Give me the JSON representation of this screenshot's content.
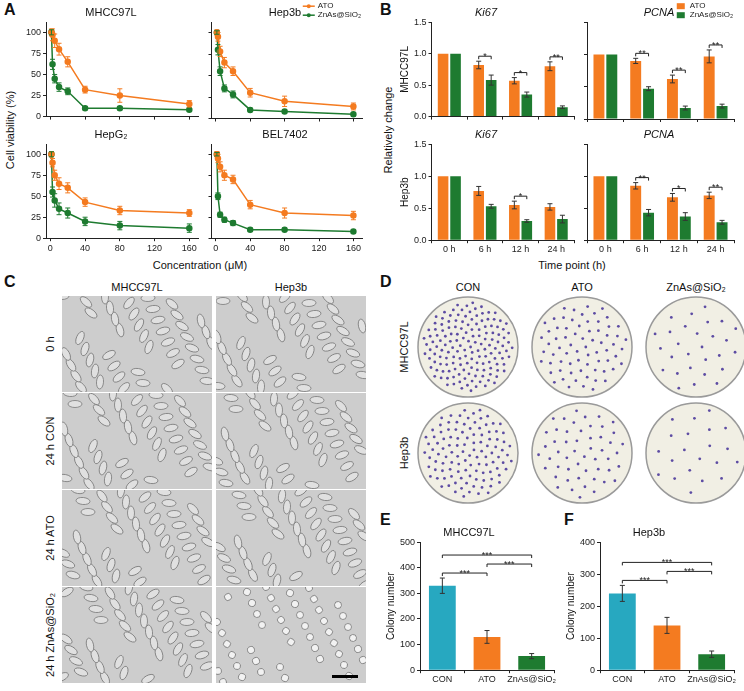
{
  "chart_data": [
    {
      "type": "line",
      "title": "MHCC97L",
      "x": [
        1.25,
        2.5,
        5,
        10,
        20,
        40,
        80,
        160
      ],
      "xlim": [
        -5,
        170
      ],
      "xticks": [
        0,
        40,
        80,
        120,
        160
      ],
      "ylim": [
        0,
        112
      ],
      "yticks": [
        0,
        25,
        50,
        75,
        100
      ],
      "grid": false,
      "marker": "circle",
      "line_style": "solid",
      "tick_labels": "y",
      "series": [
        {
          "name": "ATO",
          "color": "#f47b20",
          "values": [
            100,
            97,
            90,
            80,
            65,
            32,
            25,
            15
          ],
          "errors": [
            4,
            7,
            8,
            7,
            6,
            4,
            8,
            4
          ]
        },
        {
          "name": "ZnAs@SiO₂",
          "color": "#1e7b30",
          "values": [
            100,
            62,
            45,
            35,
            30,
            10,
            10,
            8
          ],
          "errors": [
            3,
            6,
            5,
            5,
            4,
            2,
            2,
            2
          ]
        }
      ]
    },
    {
      "type": "line",
      "title": "Hep3b",
      "x": [
        1.25,
        2.5,
        5,
        10,
        20,
        40,
        80,
        160
      ],
      "xlim": [
        -5,
        170
      ],
      "xticks": [
        0,
        40,
        80,
        120,
        160
      ],
      "ylim": [
        0,
        112
      ],
      "yticks": [
        0,
        25,
        50,
        75,
        100
      ],
      "grid": false,
      "marker": "circle",
      "line_style": "solid",
      "tick_labels": false,
      "legend": "upper right",
      "series": [
        {
          "name": "ATO",
          "color": "#f47b20",
          "values": [
            100,
            95,
            78,
            65,
            55,
            30,
            20,
            14
          ],
          "errors": [
            3,
            5,
            6,
            6,
            5,
            5,
            6,
            4
          ]
        },
        {
          "name": "ZnAs@SiO₂",
          "color": "#1e7b30",
          "values": [
            100,
            80,
            55,
            35,
            28,
            10,
            8,
            5
          ],
          "errors": [
            2,
            6,
            5,
            4,
            4,
            2,
            2,
            2
          ]
        }
      ]
    },
    {
      "type": "line",
      "title": "HepG₂",
      "x": [
        1.25,
        2.5,
        5,
        10,
        20,
        40,
        80,
        160
      ],
      "xlim": [
        -5,
        170
      ],
      "xticks": [
        0,
        40,
        80,
        120,
        160
      ],
      "ylim": [
        0,
        112
      ],
      "yticks": [
        0,
        25,
        50,
        75,
        100
      ],
      "grid": false,
      "marker": "circle",
      "line_style": "solid",
      "series": [
        {
          "name": "ATO",
          "color": "#f47b20",
          "values": [
            100,
            90,
            75,
            65,
            60,
            43,
            33,
            30
          ],
          "errors": [
            3,
            5,
            6,
            7,
            6,
            5,
            5,
            4
          ]
        },
        {
          "name": "ZnAs@SiO₂",
          "color": "#1e7b30",
          "values": [
            100,
            55,
            45,
            35,
            30,
            20,
            15,
            12
          ],
          "errors": [
            3,
            6,
            8,
            7,
            6,
            5,
            5,
            5
          ]
        }
      ]
    },
    {
      "type": "line",
      "title": "BEL7402",
      "x": [
        1.25,
        2.5,
        5,
        10,
        20,
        40,
        80,
        160
      ],
      "xlim": [
        -5,
        170
      ],
      "xticks": [
        0,
        40,
        80,
        120,
        160
      ],
      "ylim": [
        0,
        112
      ],
      "yticks": [
        0,
        25,
        50,
        75,
        100
      ],
      "grid": false,
      "marker": "circle",
      "line_style": "solid",
      "tick_labels": "x",
      "series": [
        {
          "name": "ATO",
          "color": "#f47b20",
          "values": [
            100,
            95,
            85,
            75,
            70,
            40,
            30,
            27
          ],
          "errors": [
            3,
            5,
            6,
            6,
            5,
            5,
            6,
            5
          ]
        },
        {
          "name": "ZnAs@SiO₂",
          "color": "#1e7b30",
          "values": [
            100,
            50,
            28,
            22,
            18,
            10,
            10,
            8
          ],
          "errors": [
            2,
            4,
            3,
            3,
            3,
            2,
            2,
            2
          ]
        }
      ]
    },
    {
      "type": "bar",
      "title": "Ki67",
      "ylabel": "MHCC97L",
      "categories": [
        "0 h",
        "6 h",
        "12 h",
        "24 h"
      ],
      "ylim": [
        0,
        1.5
      ],
      "yticks": [
        {
          "value": 0,
          "label": "0.0"
        },
        0.5,
        {
          "value": 1,
          "label": "1.0"
        },
        1.5
      ],
      "grid": false,
      "tick_labels": "y",
      "series": [
        {
          "name": "ATO",
          "color": "#f47b20",
          "values": [
            1,
            0.82,
            0.57,
            0.8
          ],
          "errors": [
            0,
            0.06,
            0.05,
            0.07
          ]
        },
        {
          "name": "ZnAs@SiO₂",
          "color": "#1e7b30",
          "values": [
            1,
            0.58,
            0.35,
            0.15
          ],
          "errors": [
            0,
            0.08,
            0.04,
            0.02
          ]
        }
      ],
      "annotations": [
        {
          "category": "6 h",
          "text": "*"
        },
        {
          "category": "12 h",
          "text": "*"
        },
        {
          "category": "24 h",
          "text": "**"
        }
      ]
    },
    {
      "type": "bar",
      "title": "PCNA",
      "categories": [
        "0 h",
        "6 h",
        "12 h",
        "24 h"
      ],
      "ylim": [
        0,
        1.5
      ],
      "yticks": [
        {
          "value": 0,
          "label": "0.0"
        },
        0.5,
        {
          "value": 1,
          "label": "1.0"
        },
        1.5
      ],
      "grid": false,
      "tick_labels": false,
      "legend": "upper right",
      "series": [
        {
          "name": "ATO",
          "color": "#f47b20",
          "values": [
            1,
            0.9,
            0.62,
            0.97
          ],
          "errors": [
            0,
            0.04,
            0.06,
            0.1
          ]
        },
        {
          "name": "ZnAs@SiO₂",
          "color": "#1e7b30",
          "values": [
            1,
            0.47,
            0.17,
            0.2
          ],
          "errors": [
            0,
            0.03,
            0.03,
            0.03
          ]
        }
      ],
      "annotations": [
        {
          "category": "6 h",
          "text": "**"
        },
        {
          "category": "12 h",
          "text": "**"
        },
        {
          "category": "24 h",
          "text": "**"
        }
      ]
    },
    {
      "type": "bar",
      "title": "Ki67",
      "ylabel": "Hep3b",
      "categories": [
        "0 h",
        "6 h",
        "12 h",
        "24 h"
      ],
      "ylim": [
        0,
        1.5
      ],
      "yticks": [
        {
          "value": 0,
          "label": "0.0"
        },
        0.5,
        {
          "value": 1,
          "label": "1.0"
        },
        1.5
      ],
      "grid": false,
      "series": [
        {
          "name": "ATO",
          "color": "#f47b20",
          "values": [
            1,
            0.77,
            0.55,
            0.52
          ],
          "errors": [
            0,
            0.07,
            0.06,
            0.05
          ]
        },
        {
          "name": "ZnAs@SiO₂",
          "color": "#1e7b30",
          "values": [
            1,
            0.53,
            0.3,
            0.33
          ],
          "errors": [
            0,
            0.03,
            0.02,
            0.06
          ]
        }
      ],
      "annotations": [
        {
          "category": "12 h",
          "text": "*"
        }
      ]
    },
    {
      "type": "bar",
      "title": "PCNA",
      "categories": [
        "0 h",
        "6 h",
        "12 h",
        "24 h"
      ],
      "ylim": [
        0,
        1.5
      ],
      "yticks": [
        {
          "value": 0,
          "label": "0.0"
        },
        0.5,
        {
          "value": 1,
          "label": "1.0"
        },
        1.5
      ],
      "grid": false,
      "tick_labels": "x",
      "series": [
        {
          "name": "ATO",
          "color": "#f47b20",
          "values": [
            1,
            0.85,
            0.67,
            0.7
          ],
          "errors": [
            0,
            0.05,
            0.06,
            0.05
          ]
        },
        {
          "name": "ZnAs@SiO₂",
          "color": "#1e7b30",
          "values": [
            1,
            0.43,
            0.37,
            0.28
          ],
          "errors": [
            0,
            0.05,
            0.06,
            0.03
          ]
        }
      ],
      "annotations": [
        {
          "category": "6 h",
          "text": "**"
        },
        {
          "category": "12 h",
          "text": "*"
        },
        {
          "category": "24 h",
          "text": "**"
        }
      ]
    },
    {
      "type": "bar",
      "title": "MHCC97L",
      "ylabel": "Colony number",
      "categories": [
        "CON",
        "ATO",
        "ZnAs@SiO₂"
      ],
      "values": [
        330,
        130,
        55
      ],
      "errors": [
        30,
        25,
        10
      ],
      "colors": [
        "#27a8c0",
        "#f47b20",
        "#1e7b30"
      ],
      "ylim": [
        0,
        500
      ],
      "yticks": [
        0,
        100,
        200,
        300,
        400,
        500
      ],
      "grid": false,
      "annotations": [
        {
          "from": "CON",
          "to": "ATO",
          "text": "***"
        },
        {
          "from": "ATO",
          "to": "ZnAs@SiO₂",
          "text": "***"
        },
        {
          "from": "CON",
          "to": "ZnAs@SiO₂",
          "text": "***"
        }
      ]
    },
    {
      "type": "bar",
      "title": "Hep3b",
      "ylabel": "Colony number",
      "categories": [
        "CON",
        "ATO",
        "ZnAs@SiO₂"
      ],
      "values": [
        240,
        140,
        50
      ],
      "errors": [
        25,
        25,
        10
      ],
      "colors": [
        "#27a8c0",
        "#f47b20",
        "#1e7b30"
      ],
      "ylim": [
        0,
        400
      ],
      "yticks": [
        0,
        100,
        200,
        300,
        400
      ],
      "grid": false,
      "annotations": [
        {
          "from": "CON",
          "to": "ATO",
          "text": "***"
        },
        {
          "from": "ATO",
          "to": "ZnAs@SiO₂",
          "text": "***"
        },
        {
          "from": "CON",
          "to": "ZnAs@SiO₂",
          "text": "***"
        }
      ]
    }
  ],
  "figure": {
    "panels": [
      {
        "label": "A",
        "xlabel": "Concentration (μM)",
        "ylabel": "Cell viability (%)"
      },
      {
        "label": "B",
        "xlabel": "Time point (h)",
        "ylabel": "Relatively change"
      },
      {
        "label": "C",
        "columns": [
          "MHCC97L",
          "Hep3b"
        ],
        "rows": [
          "0 h",
          "24 h CON",
          "24 h ATO",
          "24 h ZnAs@SiO₂"
        ]
      },
      {
        "label": "D",
        "columns": [
          "CON",
          "ATO",
          "ZnAs@SiO₂"
        ],
        "rows": [
          "MHCC97L",
          "Hep3b"
        ]
      },
      {
        "label": "E"
      },
      {
        "label": "F"
      }
    ]
  }
}
